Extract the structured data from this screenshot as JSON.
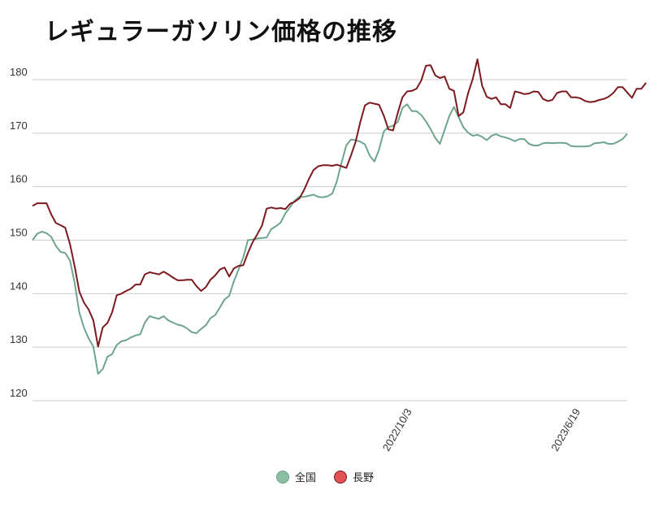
{
  "chart_data": {
    "type": "line",
    "title": "レギュラーガソリン価格の推移",
    "xlabel": "",
    "ylabel": "",
    "ylim": [
      118,
      185
    ],
    "yticks": [
      120,
      130,
      140,
      150,
      160,
      170,
      180
    ],
    "grid": true,
    "legend_position": "bottom-center",
    "x_tick_labels": [
      {
        "label": "2022/10/3",
        "index": 80
      },
      {
        "label": "2023/6/19",
        "index": 116
      }
    ],
    "series": [
      {
        "name": "全国",
        "color": "#6fa58c",
        "legend_fill": "#8bbfa3",
        "values": [
          150.0,
          151.2,
          151.6,
          151.3,
          150.6,
          148.9,
          147.8,
          147.6,
          146.2,
          142.0,
          136.5,
          133.6,
          131.6,
          130.1,
          125.0,
          125.9,
          128.2,
          128.7,
          130.4,
          131.1,
          131.3,
          131.8,
          132.2,
          132.4,
          134.6,
          135.8,
          135.5,
          135.3,
          135.8,
          135.0,
          134.6,
          134.2,
          134.0,
          133.5,
          132.8,
          132.6,
          133.4,
          134.1,
          135.4,
          136.0,
          137.4,
          138.9,
          139.6,
          142.3,
          144.5,
          146.8,
          150.0,
          150.1,
          150.3,
          150.4,
          150.5,
          152.1,
          152.6,
          153.3,
          155.0,
          156.2,
          157.4,
          158.1,
          158.1,
          158.3,
          158.5,
          158.1,
          158.0,
          158.2,
          158.7,
          161.0,
          164.5,
          167.7,
          168.8,
          168.7,
          168.4,
          167.9,
          165.8,
          164.7,
          166.9,
          170.3,
          171.1,
          171.4,
          172.1,
          174.7,
          175.4,
          174.1,
          174.1,
          173.4,
          172.2,
          170.8,
          169.1,
          168.0,
          170.6,
          173.2,
          174.9,
          173.0,
          171.1,
          170.1,
          169.5,
          169.7,
          169.3,
          168.7,
          169.5,
          169.8,
          169.4,
          169.2,
          168.9,
          168.5,
          168.9,
          168.9,
          168.0,
          167.7,
          167.7,
          168.1,
          168.2,
          168.1,
          168.2,
          168.2,
          168.1,
          167.6,
          167.5,
          167.5,
          167.5,
          167.6,
          168.1,
          168.2,
          168.3,
          168.0,
          168.0,
          168.4,
          168.9,
          169.9
        ]
      },
      {
        "name": "長野",
        "color": "#7d1a1f",
        "legend_fill": "#e05256",
        "values": [
          156.4,
          156.9,
          156.9,
          156.9,
          154.8,
          153.2,
          152.8,
          152.3,
          149.3,
          145.1,
          140.4,
          138.3,
          137.0,
          135.0,
          130.1,
          133.7,
          134.5,
          136.5,
          139.7,
          140.0,
          140.5,
          140.9,
          141.7,
          141.7,
          143.6,
          144.0,
          143.8,
          143.6,
          144.1,
          143.6,
          143.0,
          142.5,
          142.5,
          142.6,
          142.6,
          141.4,
          140.5,
          141.2,
          142.6,
          143.4,
          144.5,
          144.9,
          143.2,
          144.7,
          145.2,
          145.3,
          147.6,
          149.6,
          151.1,
          152.7,
          155.9,
          156.1,
          155.9,
          156.0,
          155.8,
          156.8,
          157.2,
          157.8,
          159.4,
          161.4,
          163.1,
          163.8,
          164.0,
          164.0,
          163.9,
          164.1,
          163.8,
          163.5,
          165.8,
          168.4,
          172.1,
          175.2,
          175.7,
          175.5,
          175.3,
          173.3,
          170.7,
          170.5,
          173.8,
          176.7,
          177.8,
          177.9,
          178.3,
          179.8,
          182.6,
          182.7,
          180.8,
          180.3,
          180.6,
          178.3,
          177.9,
          173.2,
          173.9,
          177.4,
          180.1,
          183.8,
          178.9,
          176.8,
          176.4,
          176.7,
          175.4,
          175.4,
          174.7,
          177.8,
          177.6,
          177.3,
          177.4,
          177.8,
          177.7,
          176.4,
          176.0,
          176.2,
          177.5,
          177.8,
          177.8,
          176.7,
          176.7,
          176.5,
          176.0,
          175.8,
          175.9,
          176.2,
          176.4,
          176.8,
          177.5,
          178.6,
          178.6,
          177.6,
          176.6,
          178.3,
          178.3,
          179.4
        ]
      }
    ]
  }
}
